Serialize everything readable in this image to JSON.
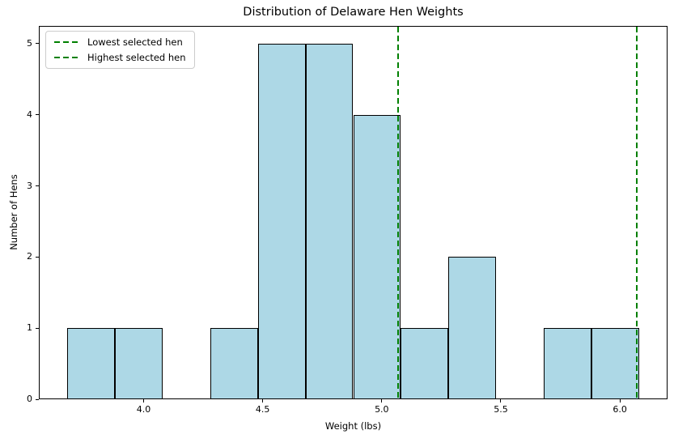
{
  "chart_data": {
    "type": "bar",
    "subtype": "histogram",
    "title": "Distribution of Delaware Hen Weights",
    "xlabel": "Weight (lbs)",
    "ylabel": "Number of Hens",
    "bin_edges": [
      3.68,
      3.88,
      4.08,
      4.28,
      4.48,
      4.68,
      4.88,
      5.08,
      5.28,
      5.48,
      5.68,
      5.88,
      6.08
    ],
    "counts": [
      1,
      1,
      0,
      1,
      5,
      5,
      4,
      1,
      2,
      0,
      1,
      1
    ],
    "bar_fill": "#ADD8E6",
    "bar_edge": "#000000",
    "vlines": [
      {
        "x": 5.07,
        "label": "Lowest selected hen",
        "color": "#008000",
        "linestyle": "dashed"
      },
      {
        "x": 6.07,
        "label": "Highest selected hen",
        "color": "#008000",
        "linestyle": "dashed"
      }
    ],
    "xlim": [
      3.56,
      6.2
    ],
    "ylim": [
      0,
      5.25
    ],
    "xticks": [
      4.0,
      4.5,
      5.0,
      5.5,
      6.0
    ],
    "xtick_labels": [
      "4.0",
      "4.5",
      "5.0",
      "5.5",
      "6.0"
    ],
    "yticks": [
      0,
      1,
      2,
      3,
      4,
      5
    ],
    "ytick_labels": [
      "0",
      "1",
      "2",
      "3",
      "4",
      "5"
    ],
    "grid": false,
    "legend_position": "upper left"
  }
}
